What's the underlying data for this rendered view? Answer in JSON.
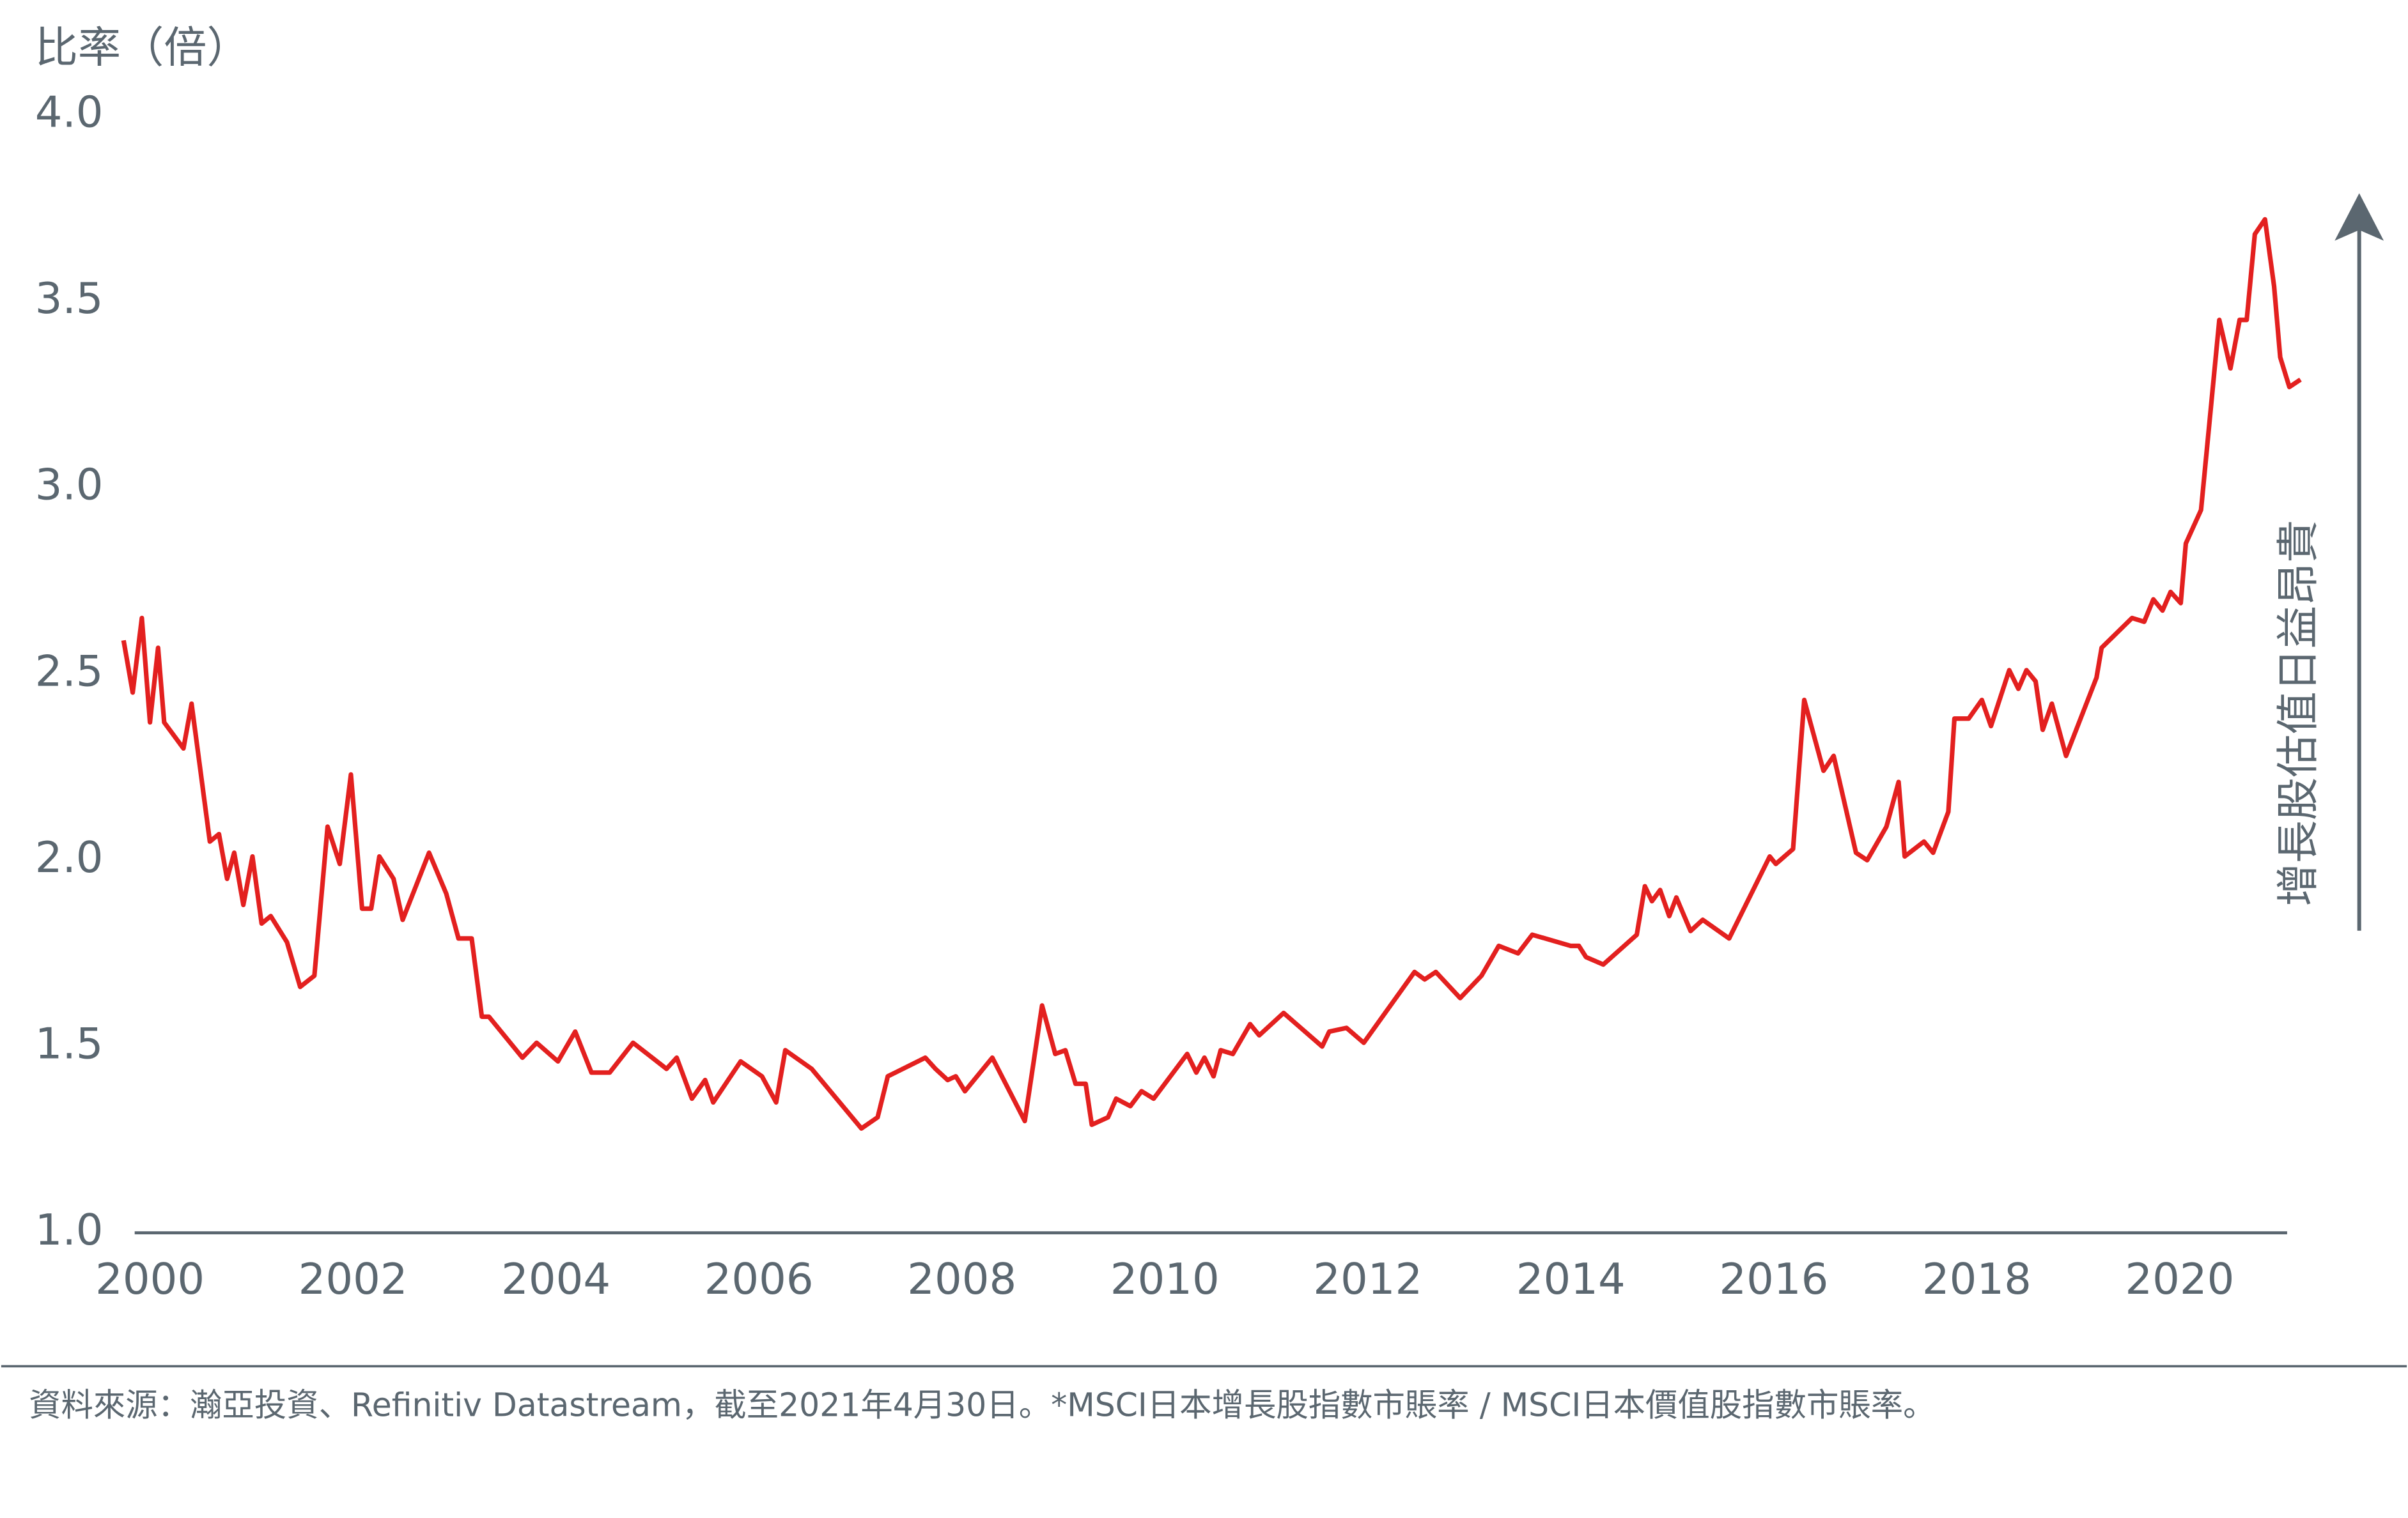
{
  "chart_data": {
    "type": "line",
    "y_axis_label": "比率（倍）",
    "annotation": "增長股估值日益昂貴",
    "note": "資料來源：瀚亞投資、Refinitiv Datastream，截至2021年4月30日。*MSCI日本增長股指數市賬率 / MSCI日本價值股指數市賬率。",
    "x": [
      1999.74,
      1999.83,
      1999.92,
      2000.0,
      2000.08,
      2000.14,
      2000.33,
      2000.41,
      2000.59,
      2000.68,
      2000.76,
      2000.83,
      2000.92,
      2001.01,
      2001.1,
      2001.19,
      2001.35,
      2001.48,
      2001.62,
      2001.75,
      2001.87,
      2001.98,
      2002.09,
      2002.18,
      2002.26,
      2002.4,
      2002.49,
      2002.75,
      2002.92,
      2003.04,
      2003.17,
      2003.27,
      2003.34,
      2003.67,
      2003.81,
      2004.02,
      2004.19,
      2004.35,
      2004.53,
      2004.76,
      2005.09,
      2005.19,
      2005.34,
      2005.47,
      2005.55,
      2005.82,
      2006.03,
      2006.17,
      2006.26,
      2006.52,
      2007.01,
      2007.17,
      2007.27,
      2007.64,
      2007.74,
      2007.86,
      2007.94,
      2008.03,
      2008.3,
      2008.62,
      2008.79,
      2008.92,
      2009.02,
      2009.12,
      2009.22,
      2009.28,
      2009.44,
      2009.52,
      2009.66,
      2009.77,
      2009.89,
      2010.22,
      2010.31,
      2010.39,
      2010.48,
      2010.55,
      2010.67,
      2010.84,
      2010.93,
      2011.17,
      2011.55,
      2011.62,
      2011.79,
      2011.96,
      2012.46,
      2012.56,
      2012.67,
      2012.91,
      2013.12,
      2013.29,
      2013.48,
      2013.62,
      2014.0,
      2014.08,
      2014.15,
      2014.32,
      2014.65,
      2014.73,
      2014.8,
      2014.88,
      2014.97,
      2015.04,
      2015.18,
      2015.3,
      2015.56,
      2015.96,
      2016.02,
      2016.19,
      2016.3,
      2016.49,
      2016.59,
      2016.81,
      2016.92,
      2017.11,
      2017.23,
      2017.29,
      2017.48,
      2017.57,
      2017.72,
      2017.78,
      2017.92,
      2018.05,
      2018.14,
      2018.32,
      2018.41,
      2018.49,
      2018.58,
      2018.65,
      2018.74,
      2018.88,
      2019.18,
      2019.23,
      2019.53,
      2019.65,
      2019.74,
      2019.83,
      2019.91,
      2020.01,
      2020.06,
      2020.21,
      2020.39,
      2020.5,
      2020.59,
      2020.66,
      2020.74,
      2020.84,
      2020.93,
      2020.99,
      2021.08,
      2021.19
    ],
    "series": [
      {
        "color": "#e3201f",
        "values": [
          2.59,
          2.45,
          2.65,
          2.37,
          2.57,
          2.37,
          2.3,
          2.42,
          2.05,
          2.07,
          1.95,
          2.02,
          1.88,
          2.01,
          1.83,
          1.85,
          1.78,
          1.66,
          1.69,
          2.09,
          1.99,
          2.23,
          1.87,
          1.87,
          2.01,
          1.95,
          1.84,
          2.02,
          1.91,
          1.79,
          1.79,
          1.58,
          1.58,
          1.47,
          1.51,
          1.46,
          1.54,
          1.43,
          1.43,
          1.51,
          1.44,
          1.47,
          1.36,
          1.41,
          1.35,
          1.46,
          1.42,
          1.35,
          1.49,
          1.44,
          1.28,
          1.31,
          1.42,
          1.47,
          1.44,
          1.41,
          1.42,
          1.38,
          1.47,
          1.3,
          1.61,
          1.48,
          1.49,
          1.4,
          1.4,
          1.29,
          1.31,
          1.36,
          1.34,
          1.38,
          1.36,
          1.48,
          1.43,
          1.47,
          1.42,
          1.49,
          1.48,
          1.56,
          1.53,
          1.59,
          1.5,
          1.54,
          1.55,
          1.51,
          1.7,
          1.68,
          1.7,
          1.63,
          1.69,
          1.77,
          1.75,
          1.8,
          1.77,
          1.77,
          1.74,
          1.72,
          1.8,
          1.93,
          1.89,
          1.92,
          1.85,
          1.9,
          1.81,
          1.84,
          1.79,
          2.01,
          1.99,
          2.03,
          2.43,
          2.24,
          2.28,
          2.02,
          2.0,
          2.09,
          2.21,
          2.01,
          2.05,
          2.02,
          2.13,
          2.38,
          2.38,
          2.43,
          2.36,
          2.51,
          2.46,
          2.51,
          2.48,
          2.35,
          2.42,
          2.28,
          2.49,
          2.57,
          2.65,
          2.64,
          2.7,
          2.67,
          2.72,
          2.69,
          2.85,
          2.94,
          3.45,
          3.32,
          3.45,
          3.45,
          3.68,
          3.72,
          3.54,
          3.35,
          3.27,
          3.29
        ]
      }
    ],
    "xlim": [
      1999.6,
      2021.3
    ],
    "xticks": [
      2000,
      2002,
      2004,
      2006,
      2008,
      2010,
      2012,
      2014,
      2016,
      2018,
      2020
    ],
    "ylim": [
      1,
      4
    ],
    "yticks": [
      {
        "value": 1,
        "label": "1.0"
      },
      1.5,
      {
        "value": 2,
        "label": "2.0"
      },
      2.5,
      {
        "value": 3,
        "label": "3.0"
      },
      3.5,
      {
        "value": 4,
        "label": "4.0"
      }
    ],
    "grid": false
  }
}
